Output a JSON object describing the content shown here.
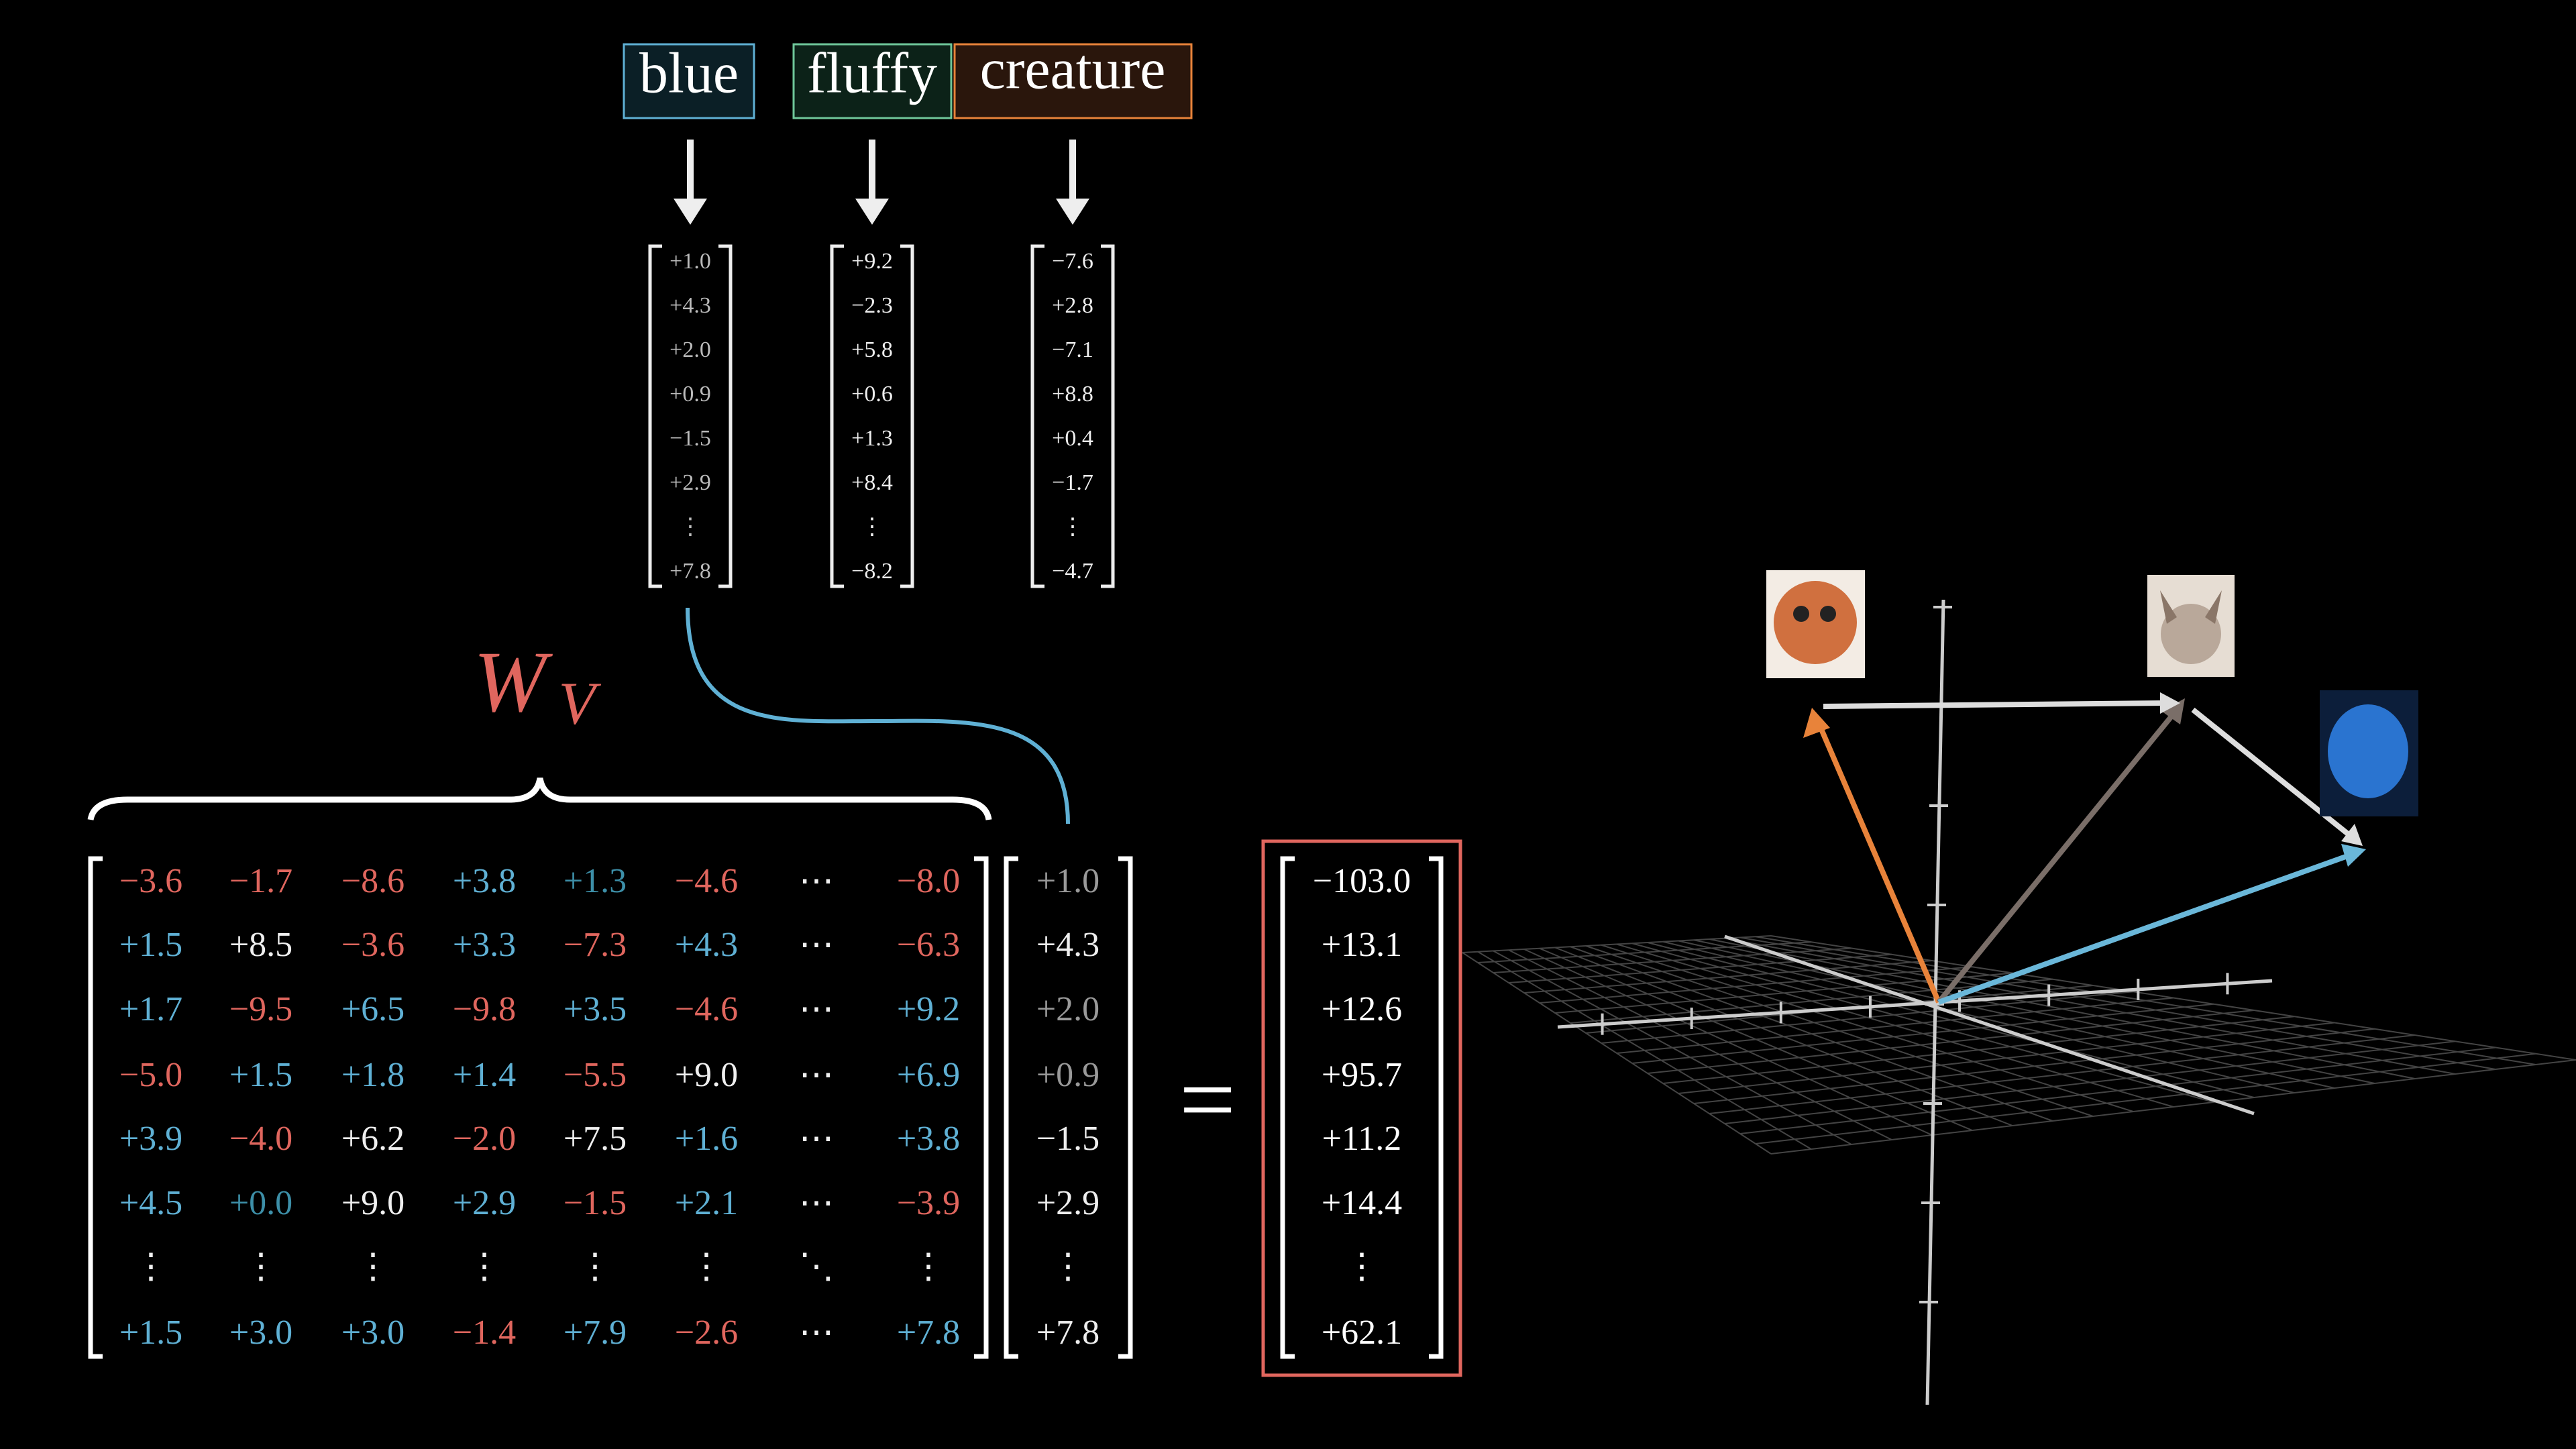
{
  "words": [
    "blue",
    "fluffy",
    "creature"
  ],
  "embeddings": [
    [
      "+1.0",
      "+4.3",
      "+2.0",
      "+0.9",
      "−1.5",
      "+2.9",
      "⋮",
      "+7.8"
    ],
    [
      "+9.2",
      "−2.3",
      "+5.8",
      "+0.6",
      "+1.3",
      "+8.4",
      "⋮",
      "−8.2"
    ],
    [
      "−7.6",
      "+2.8",
      "−7.1",
      "+8.8",
      "+0.4",
      "−1.7",
      "⋮",
      "−4.7"
    ]
  ],
  "matrix_label": {
    "main": "W",
    "sub": "V"
  },
  "matrix": {
    "rows": [
      [
        "−3.6",
        "−1.7",
        "−8.6",
        "+3.8",
        "+1.3",
        "−4.6",
        "⋯",
        "−8.0"
      ],
      [
        "+1.5",
        "+8.5",
        "−3.6",
        "+3.3",
        "−7.3",
        "+4.3",
        "⋯",
        "−6.3"
      ],
      [
        "+1.7",
        "−9.5",
        "+6.5",
        "−9.8",
        "+3.5",
        "−4.6",
        "⋯",
        "+9.2"
      ],
      [
        "−5.0",
        "+1.5",
        "+1.8",
        "+1.4",
        "−5.5",
        "+9.0",
        "⋯",
        "+6.9"
      ],
      [
        "+3.9",
        "−4.0",
        "+6.2",
        "−2.0",
        "+7.5",
        "+1.6",
        "⋯",
        "+3.8"
      ],
      [
        "+4.5",
        "+0.0",
        "+9.0",
        "+2.9",
        "−1.5",
        "+2.1",
        "⋯",
        "−3.9"
      ],
      [
        "⋮",
        "⋮",
        "⋮",
        "⋮",
        "⋮",
        "⋮",
        "⋱",
        "⋮"
      ],
      [
        "+1.5",
        "+3.0",
        "+3.0",
        "−1.4",
        "+7.9",
        "−2.6",
        "⋯",
        "+7.8"
      ]
    ],
    "colors": [
      [
        "#e0665e",
        "#e0665e",
        "#e0665e",
        "#5fb0d4",
        "#3d8fa8",
        "#e0665e",
        "#f0f0f0",
        "#e0665e"
      ],
      [
        "#5fb0d4",
        "#f0f0f0",
        "#e0665e",
        "#5fb0d4",
        "#e0665e",
        "#5fb0d4",
        "#f0f0f0",
        "#e0665e"
      ],
      [
        "#5fb0d4",
        "#e0665e",
        "#5fb0d4",
        "#e0665e",
        "#5fb0d4",
        "#e0665e",
        "#f0f0f0",
        "#5fb0d4"
      ],
      [
        "#e0665e",
        "#5fb0d4",
        "#5fb0d4",
        "#5fb0d4",
        "#e0665e",
        "#f0f0f0",
        "#f0f0f0",
        "#5fb0d4"
      ],
      [
        "#5fb0d4",
        "#e0665e",
        "#f0f0f0",
        "#e0665e",
        "#f0f0f0",
        "#5fb0d4",
        "#f0f0f0",
        "#5fb0d4"
      ],
      [
        "#5fb0d4",
        "#3d8fa8",
        "#f0f0f0",
        "#5fb0d4",
        "#e0665e",
        "#5fb0d4",
        "#f0f0f0",
        "#e0665e"
      ],
      [
        "#f0f0f0",
        "#f0f0f0",
        "#f0f0f0",
        "#f0f0f0",
        "#f0f0f0",
        "#f0f0f0",
        "#f0f0f0",
        "#f0f0f0"
      ],
      [
        "#5fb0d4",
        "#5fb0d4",
        "#5fb0d4",
        "#e0665e",
        "#5fb0d4",
        "#e0665e",
        "#f0f0f0",
        "#5fb0d4"
      ]
    ]
  },
  "input_vector": [
    "+1.0",
    "+4.3",
    "+2.0",
    "+0.9",
    "−1.5",
    "+2.9",
    "⋮",
    "+7.8"
  ],
  "equals": "=",
  "result_vector": [
    "−103.0",
    "+13.1",
    "+12.6",
    "+95.7",
    "+11.2",
    "+14.4",
    "⋮",
    "+62.1"
  ]
}
